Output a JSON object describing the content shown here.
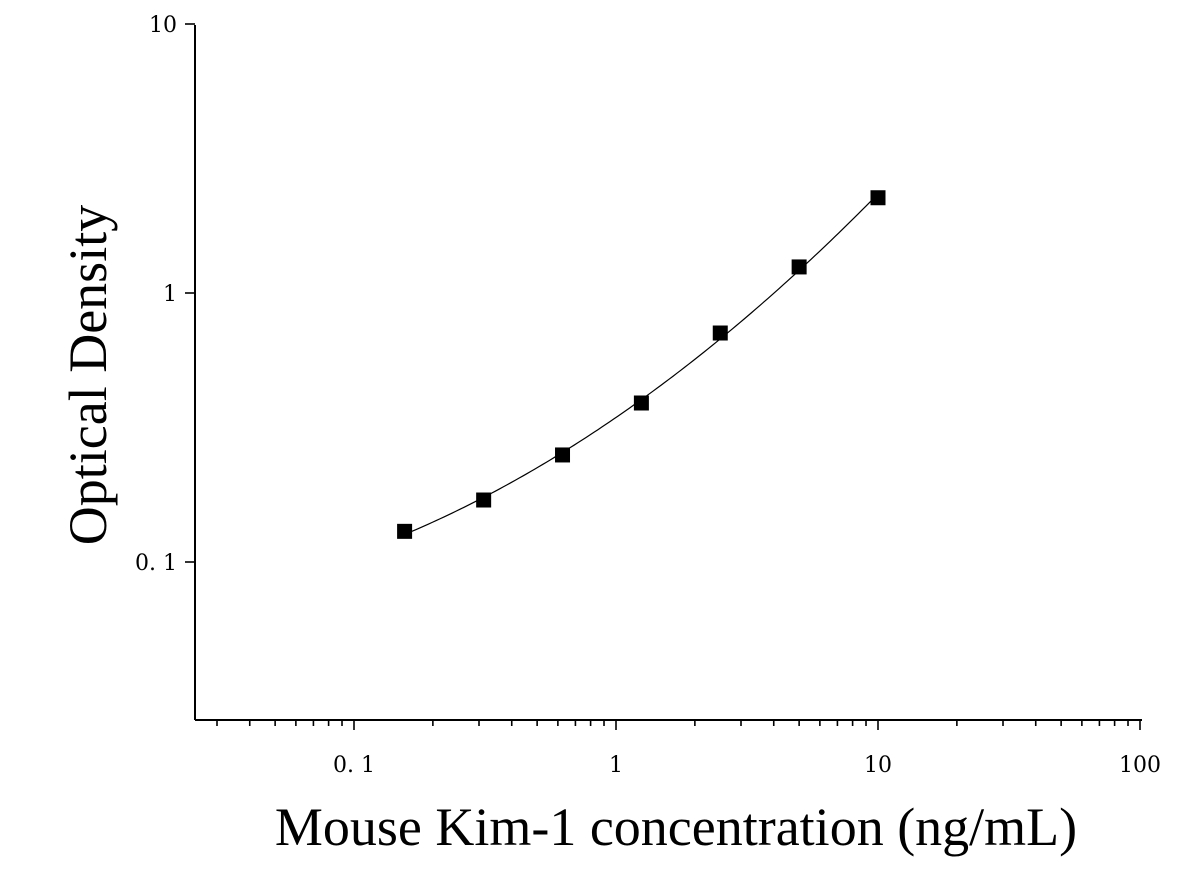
{
  "chart_data": {
    "type": "scatter",
    "xlabel": "Mouse Kim-1 concentration (ng/mL)",
    "ylabel": "Optical Density",
    "xscale": "log",
    "yscale": "log",
    "xlim": [
      0.025,
      100
    ],
    "ylim": [
      0.025,
      10
    ],
    "x_ticks": [
      {
        "value": 0.1,
        "label": "0. 1"
      },
      {
        "value": 1,
        "label": "1"
      },
      {
        "value": 10,
        "label": "10"
      },
      {
        "value": 100,
        "label": "100"
      }
    ],
    "y_ticks": [
      {
        "value": 0.1,
        "label": "0. 1"
      },
      {
        "value": 1,
        "label": "1"
      },
      {
        "value": 10,
        "label": "10"
      }
    ],
    "grid": false,
    "series": [
      {
        "x": [
          0.156,
          0.3125,
          0.625,
          1.25,
          2.5,
          5,
          10
        ],
        "y": [
          0.13,
          0.17,
          0.25,
          0.39,
          0.71,
          1.25,
          2.26
        ],
        "marker": "square",
        "fit_curve": true
      }
    ],
    "colors": {
      "marker": "#000000",
      "curve": "#000000",
      "axis": "#000000"
    }
  }
}
